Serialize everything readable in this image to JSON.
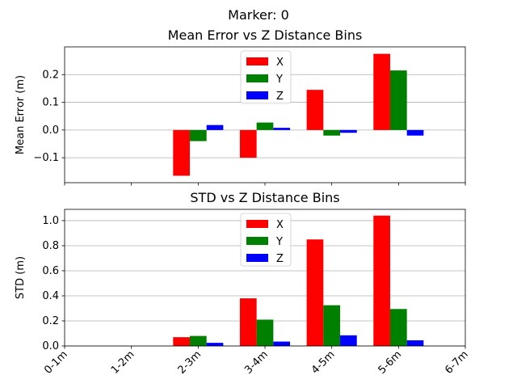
{
  "figure": {
    "suptitle": "Marker: 0"
  },
  "colors": {
    "X": "#ff0000",
    "Y": "#008000",
    "Z": "#0000ff"
  },
  "chart_data": [
    {
      "type": "bar",
      "title": "Mean Error vs Z Distance Bins",
      "xlabel": "",
      "ylabel": "Mean Error (m)",
      "categories": [
        "0-1m",
        "1-2m",
        "2-3m",
        "3-4m",
        "4-5m",
        "5-6m",
        "6-7m"
      ],
      "series": [
        {
          "name": "X",
          "values": [
            null,
            null,
            -0.165,
            -0.1,
            0.145,
            0.275,
            null
          ]
        },
        {
          "name": "Y",
          "values": [
            null,
            null,
            -0.04,
            0.027,
            -0.02,
            0.215,
            null
          ]
        },
        {
          "name": "Z",
          "values": [
            null,
            null,
            0.018,
            0.008,
            -0.01,
            -0.02,
            null
          ]
        }
      ],
      "ylim": [
        -0.19,
        0.3
      ],
      "yticks": [
        -0.1,
        0.0,
        0.1,
        0.2
      ],
      "ytick_labels": [
        "−0.1",
        "0.0",
        "0.1",
        "0.2"
      ],
      "show_xtick_labels": false,
      "grid": "y",
      "legend": "top-center"
    },
    {
      "type": "bar",
      "title": "STD vs Z Distance Bins",
      "xlabel": "",
      "ylabel": "STD (m)",
      "categories": [
        "0-1m",
        "1-2m",
        "2-3m",
        "3-4m",
        "4-5m",
        "5-6m",
        "6-7m"
      ],
      "series": [
        {
          "name": "X",
          "values": [
            null,
            null,
            0.07,
            0.38,
            0.85,
            1.04,
            null
          ]
        },
        {
          "name": "Y",
          "values": [
            null,
            null,
            0.08,
            0.21,
            0.325,
            0.295,
            null
          ]
        },
        {
          "name": "Z",
          "values": [
            null,
            null,
            0.025,
            0.035,
            0.085,
            0.045,
            null
          ]
        }
      ],
      "ylim": [
        0,
        1.09
      ],
      "yticks": [
        0.0,
        0.2,
        0.4,
        0.6,
        0.8,
        1.0
      ],
      "ytick_labels": [
        "0.0",
        "0.2",
        "0.4",
        "0.6",
        "0.8",
        "1.0"
      ],
      "show_xtick_labels": true,
      "grid": "y",
      "legend": "top-center"
    }
  ]
}
